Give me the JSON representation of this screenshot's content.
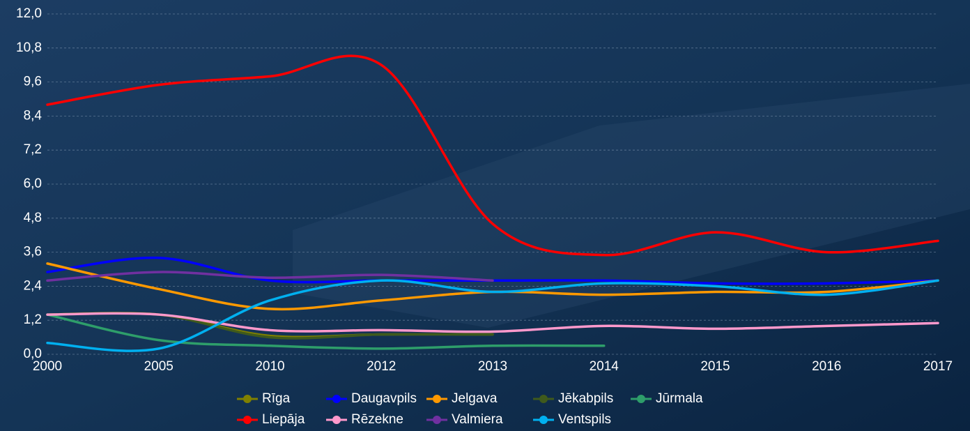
{
  "chart_data": {
    "type": "line",
    "categories": [
      "2000",
      "2005",
      "2010",
      "2012",
      "2013",
      "2014",
      "2015",
      "2016",
      "2017"
    ],
    "ylim": [
      0,
      12
    ],
    "yticks": [
      {
        "value": 0,
        "label": "0,0"
      },
      {
        "value": 1.2,
        "label": "1,2"
      },
      {
        "value": 2.4,
        "label": "2,4"
      },
      {
        "value": 3.6,
        "label": "3,6"
      },
      {
        "value": 4.8,
        "label": "4,8"
      },
      {
        "value": 6,
        "label": "6,0"
      },
      {
        "value": 7.2,
        "label": "7,2"
      },
      {
        "value": 8.4,
        "label": "8,4"
      },
      {
        "value": 9.6,
        "label": "9,6"
      },
      {
        "value": 10.8,
        "label": "10,8"
      },
      {
        "value": 12,
        "label": "12,0"
      }
    ],
    "grid": true,
    "smooth": true,
    "series": [
      {
        "name": "Rīga",
        "color": "#808000",
        "values": [
          1.4,
          1.4,
          0.65,
          0.7,
          0.7,
          null,
          null,
          null,
          null
        ]
      },
      {
        "name": "Daugavpils",
        "color": "#0000ff",
        "values": [
          2.9,
          3.4,
          2.6,
          2.6,
          2.6,
          2.6,
          2.5,
          2.5,
          2.6
        ]
      },
      {
        "name": "Jelgava",
        "color": "#ff9900",
        "values": [
          3.2,
          2.3,
          1.6,
          1.9,
          2.2,
          2.1,
          2.2,
          2.2,
          2.6
        ]
      },
      {
        "name": "Jēkabpils",
        "color": "#3f5a1c",
        "values": [
          1.4,
          1.4,
          0.6,
          0.7,
          0.7,
          null,
          null,
          null,
          null
        ]
      },
      {
        "name": "Jūrmala",
        "color": "#2e9e6a",
        "values": [
          1.4,
          0.5,
          0.3,
          0.2,
          0.3,
          0.3,
          null,
          null,
          null
        ]
      },
      {
        "name": "Liepāja",
        "color": "#ff0000",
        "values": [
          8.8,
          9.5,
          9.8,
          10.2,
          4.6,
          3.5,
          4.3,
          3.6,
          4.0
        ]
      },
      {
        "name": "Rēzekne",
        "color": "#ff99cc",
        "values": [
          1.4,
          1.4,
          0.85,
          0.85,
          0.8,
          1.0,
          0.9,
          1.0,
          1.1
        ]
      },
      {
        "name": "Valmiera",
        "color": "#7030a0",
        "values": [
          2.6,
          2.9,
          2.7,
          2.8,
          2.6,
          null,
          null,
          null,
          null
        ]
      },
      {
        "name": "Ventspils",
        "color": "#00b0f0",
        "values": [
          0.4,
          0.2,
          1.9,
          2.6,
          2.2,
          2.5,
          2.4,
          2.1,
          2.6
        ]
      }
    ]
  }
}
